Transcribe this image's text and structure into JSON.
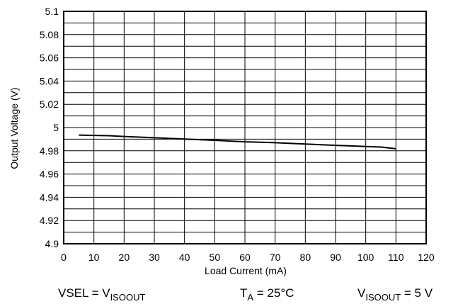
{
  "chart_data": {
    "type": "line",
    "title": "",
    "xlabel": "Load Current (mA)",
    "ylabel": "Output Voltage (V)",
    "xlim": [
      0,
      120
    ],
    "ylim": [
      4.9,
      5.1
    ],
    "x_ticks": [
      0,
      10,
      20,
      30,
      40,
      50,
      60,
      70,
      80,
      90,
      100,
      110,
      120
    ],
    "y_ticks": [
      "4.9",
      "4.92",
      "4.94",
      "4.96",
      "4.98",
      "5",
      "5.02",
      "5.04",
      "5.06",
      "5.08",
      "5.1"
    ],
    "grid": true,
    "series": [
      {
        "x": [
          5,
          10,
          15,
          20,
          30,
          40,
          50,
          60,
          70,
          80,
          90,
          100,
          105,
          110
        ],
        "y": [
          4.9935,
          4.9932,
          4.993,
          4.9923,
          4.9912,
          4.9901,
          4.989,
          4.9877,
          4.987,
          4.9858,
          4.9847,
          4.9837,
          4.9832,
          4.9818
        ],
        "color": "#000000"
      }
    ]
  },
  "conditions": {
    "vsel": {
      "main": "VSEL = V",
      "sub": "ISOOUT"
    },
    "ta": {
      "main": "T",
      "sub": "A",
      "tail": " = 25°C"
    },
    "vout": {
      "main": "V",
      "sub": "ISOOUT",
      "tail": " = 5 V"
    }
  }
}
